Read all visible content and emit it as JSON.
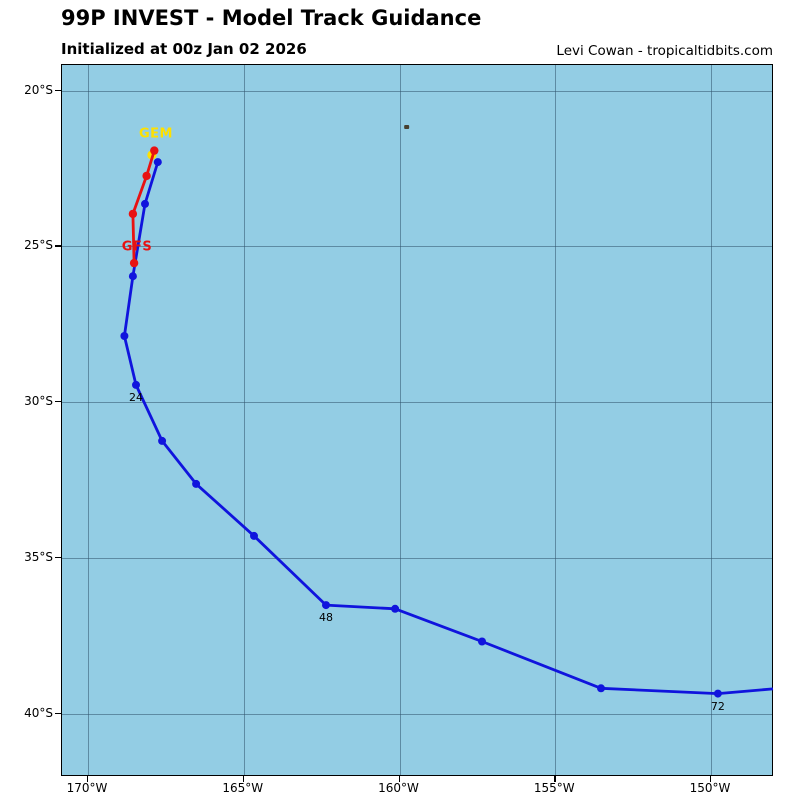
{
  "header": {
    "title": "99P INVEST - Model Track Guidance",
    "subtitle": "Initialized at 00z Jan 02 2026",
    "credit": "Levi Cowan - tropicaltidbits.com"
  },
  "axes": {
    "x_ticks": [
      "170°W",
      "165°W",
      "160°W",
      "155°W",
      "150°W"
    ],
    "y_ticks": [
      "20°S",
      "25°S",
      "30°S",
      "35°S",
      "40°S"
    ]
  },
  "colors": {
    "ocean": "#93cde4",
    "grid": "rgba(50,85,110,0.55)",
    "blue_track": "#1014dd",
    "gfs_track": "#e81212",
    "gem_track": "#ffe100",
    "land": "#474030"
  },
  "map_labels": {
    "gem": "GEM",
    "gfs": "GFS"
  },
  "chart_data": {
    "type": "line",
    "title": "99P INVEST - Model Track Guidance",
    "initialized": "00z Jan 02 2026",
    "x_axis": {
      "ticks": [
        "170°W",
        "165°W",
        "160°W",
        "155°W",
        "150°W"
      ],
      "range_lon_w": [
        170.8,
        148.0
      ]
    },
    "y_axis": {
      "ticks": [
        "20°S",
        "25°S",
        "30°S",
        "35°S",
        "40°S"
      ],
      "range_lat_s": [
        19.2,
        42.0
      ]
    },
    "grid": true,
    "series": [
      {
        "name": "blue-model-track",
        "label": null,
        "color": "#1014dd",
        "marker_radius": 4,
        "points_lat_s_lon_w": [
          [
            22.3,
            167.76
          ],
          [
            23.64,
            168.17
          ],
          [
            25.96,
            168.56
          ],
          [
            27.88,
            168.83
          ],
          [
            29.45,
            168.46
          ],
          [
            31.25,
            167.62
          ],
          [
            32.63,
            166.53
          ],
          [
            34.3,
            164.67
          ],
          [
            36.52,
            162.36
          ],
          [
            36.64,
            160.14
          ],
          [
            37.69,
            157.35
          ],
          [
            39.19,
            153.53
          ],
          [
            39.36,
            149.78
          ]
        ],
        "clip_extension_lat_s_lon_w": [
          39.21,
          148.01
        ]
      },
      {
        "name": "GEM",
        "label": "GEM",
        "color": "#ffe100",
        "marker_radius": 4.6,
        "points_lat_s_lon_w": [
          [
            22.07,
            167.95
          ]
        ]
      },
      {
        "name": "GFS",
        "label": "GFS",
        "color": "#e81212",
        "marker_radius": 4.2,
        "points_lat_s_lon_w": [
          [
            21.93,
            167.87
          ],
          [
            22.74,
            168.12
          ],
          [
            23.96,
            168.56
          ],
          [
            25.54,
            168.52
          ]
        ]
      }
    ],
    "hour_labels": [
      {
        "text": "24",
        "lat_s": 29.45,
        "lon_w": 168.46
      },
      {
        "text": "48",
        "lat_s": 36.52,
        "lon_w": 162.36
      },
      {
        "text": "72",
        "lat_s": 39.36,
        "lon_w": 149.78
      }
    ],
    "island_marker": {
      "lat_s": 21.17,
      "lon_w": 159.77
    }
  }
}
